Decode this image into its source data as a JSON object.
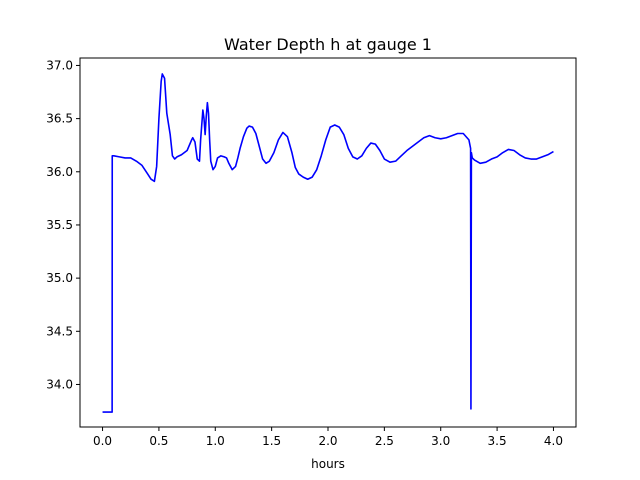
{
  "chart_data": {
    "type": "line",
    "title": "Water Depth h at gauge 1",
    "xlabel": "hours",
    "ylabel": "",
    "xlim": [
      -0.2,
      4.2
    ],
    "ylim": [
      33.6,
      37.07
    ],
    "xticks": [
      0.0,
      0.5,
      1.0,
      1.5,
      2.0,
      2.5,
      3.0,
      3.5,
      4.0
    ],
    "xtick_labels": [
      "0.0",
      "0.5",
      "1.0",
      "1.5",
      "2.0",
      "2.5",
      "3.0",
      "3.5",
      "4.0"
    ],
    "yticks": [
      34.0,
      34.5,
      35.0,
      35.5,
      36.0,
      36.5,
      37.0
    ],
    "ytick_labels": [
      "34.0",
      "34.5",
      "35.0",
      "35.5",
      "36.0",
      "36.5",
      "37.0"
    ],
    "grid": false,
    "line_color": "#0000ff",
    "series": [
      {
        "x": [
          0.0,
          0.05,
          0.085,
          0.086,
          0.1,
          0.15,
          0.2,
          0.25,
          0.3,
          0.35,
          0.4,
          0.43,
          0.46,
          0.48,
          0.5,
          0.52,
          0.53,
          0.55,
          0.57,
          0.6,
          0.62,
          0.64,
          0.66,
          0.7,
          0.75,
          0.79,
          0.8,
          0.82,
          0.84,
          0.86,
          0.87,
          0.89,
          0.9,
          0.91,
          0.92,
          0.93,
          0.94,
          0.95,
          0.96,
          0.98,
          1.0,
          1.02,
          1.05,
          1.08,
          1.1,
          1.12,
          1.15,
          1.18,
          1.2,
          1.22,
          1.25,
          1.28,
          1.3,
          1.33,
          1.36,
          1.39,
          1.42,
          1.45,
          1.48,
          1.52,
          1.56,
          1.6,
          1.64,
          1.68,
          1.71,
          1.74,
          1.78,
          1.82,
          1.86,
          1.9,
          1.94,
          1.98,
          2.02,
          2.06,
          2.1,
          2.14,
          2.18,
          2.22,
          2.26,
          2.3,
          2.34,
          2.38,
          2.42,
          2.46,
          2.5,
          2.55,
          2.6,
          2.65,
          2.7,
          2.75,
          2.8,
          2.85,
          2.9,
          2.95,
          3.0,
          3.05,
          3.1,
          3.15,
          3.2,
          3.25,
          3.265,
          3.268,
          3.272,
          3.275,
          3.28,
          3.3,
          3.35,
          3.4,
          3.45,
          3.5,
          3.55,
          3.6,
          3.65,
          3.7,
          3.75,
          3.8,
          3.85,
          3.9,
          3.95,
          4.0
        ],
        "y": [
          33.74,
          33.74,
          33.74,
          36.15,
          36.15,
          36.14,
          36.13,
          36.13,
          36.1,
          36.06,
          35.98,
          35.93,
          35.91,
          36.05,
          36.5,
          36.85,
          36.92,
          36.88,
          36.55,
          36.35,
          36.15,
          36.12,
          36.14,
          36.16,
          36.2,
          36.3,
          36.32,
          36.28,
          36.12,
          36.1,
          36.3,
          36.58,
          36.5,
          36.35,
          36.52,
          36.65,
          36.55,
          36.3,
          36.1,
          36.02,
          36.05,
          36.13,
          36.15,
          36.14,
          36.13,
          36.08,
          36.02,
          36.05,
          36.13,
          36.22,
          36.33,
          36.41,
          36.43,
          36.42,
          36.36,
          36.24,
          36.12,
          36.08,
          36.1,
          36.18,
          36.3,
          36.37,
          36.33,
          36.18,
          36.04,
          35.98,
          35.95,
          35.93,
          35.95,
          36.02,
          36.15,
          36.3,
          36.42,
          36.44,
          36.42,
          36.35,
          36.22,
          36.14,
          36.12,
          36.15,
          36.22,
          36.27,
          36.26,
          36.2,
          36.12,
          36.09,
          36.1,
          36.15,
          36.2,
          36.24,
          36.28,
          36.32,
          36.34,
          36.32,
          36.31,
          36.32,
          36.34,
          36.36,
          36.36,
          36.3,
          36.22,
          33.77,
          36.18,
          36.16,
          36.13,
          36.11,
          36.08,
          36.09,
          36.12,
          36.14,
          36.18,
          36.21,
          36.2,
          36.16,
          36.13,
          36.12,
          36.12,
          36.14,
          36.16,
          36.19
        ]
      }
    ]
  }
}
